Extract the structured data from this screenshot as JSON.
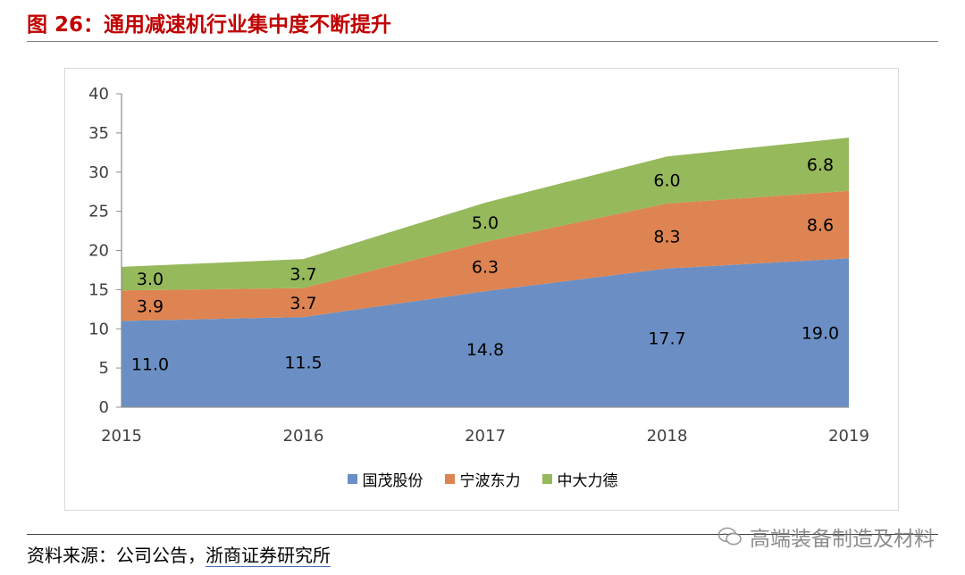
{
  "figure_title": "图 26：通用减速机行业集中度不断提升",
  "source": {
    "prefix": "资料来源：公司公告，",
    "company": "浙商证券研究所"
  },
  "watermark": {
    "text": "高端装备制造及材料",
    "icon": "wechat-icon"
  },
  "colors": {
    "title": "#c00000",
    "series_1": "#6b8fc4",
    "series_2": "#de8452",
    "series_3": "#96b95c"
  },
  "chart_data": {
    "type": "area",
    "stacked": true,
    "title": "",
    "xlabel": "",
    "ylabel": "",
    "categories": [
      "2015",
      "2016",
      "2017",
      "2018",
      "2019"
    ],
    "ylim": [
      0,
      40
    ],
    "yticks": [
      "0",
      "5",
      "10",
      "15",
      "20",
      "25",
      "30",
      "35",
      "40"
    ],
    "grid": false,
    "legend_position": "bottom",
    "series": [
      {
        "name": "国茂股份",
        "values": [
          11.0,
          11.5,
          14.8,
          17.7,
          19.0
        ],
        "labels": [
          "11.0",
          "11.5",
          "14.8",
          "17.7",
          "19.0"
        ],
        "color": "#6b8fc4"
      },
      {
        "name": "宁波东力",
        "values": [
          3.9,
          3.7,
          6.3,
          8.3,
          8.6
        ],
        "labels": [
          "3.9",
          "3.7",
          "6.3",
          "8.3",
          "8.6"
        ],
        "color": "#de8452"
      },
      {
        "name": "中大力德",
        "values": [
          3.0,
          3.7,
          5.0,
          6.0,
          6.8
        ],
        "labels": [
          "3.0",
          "3.7",
          "5.0",
          "6.0",
          "6.8"
        ],
        "color": "#96b95c"
      }
    ]
  }
}
